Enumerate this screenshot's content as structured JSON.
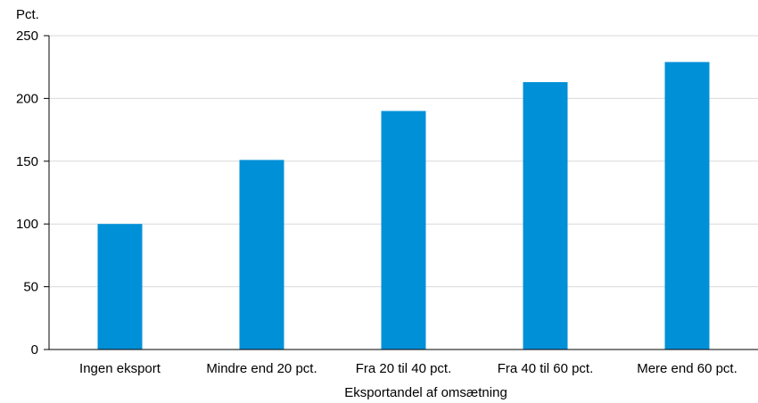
{
  "chart_data": {
    "type": "bar",
    "ylabel": "Pct.",
    "xlabel": "Eksportandel af omsætning",
    "categories": [
      "Ingen eksport",
      "Mindre end 20 pct.",
      "Fra 20 til 40 pct.",
      "Fra 40 til 60 pct.",
      "Mere end 60 pct."
    ],
    "values": [
      100,
      151,
      190,
      213,
      229
    ],
    "ylim": [
      0,
      250
    ],
    "yticks": [
      0,
      50,
      100,
      150,
      200,
      250
    ],
    "grid": true,
    "legend": "none",
    "colors": {
      "bar": "#0090d8",
      "grid": "#d9d9d9",
      "axis": "#000000"
    }
  }
}
